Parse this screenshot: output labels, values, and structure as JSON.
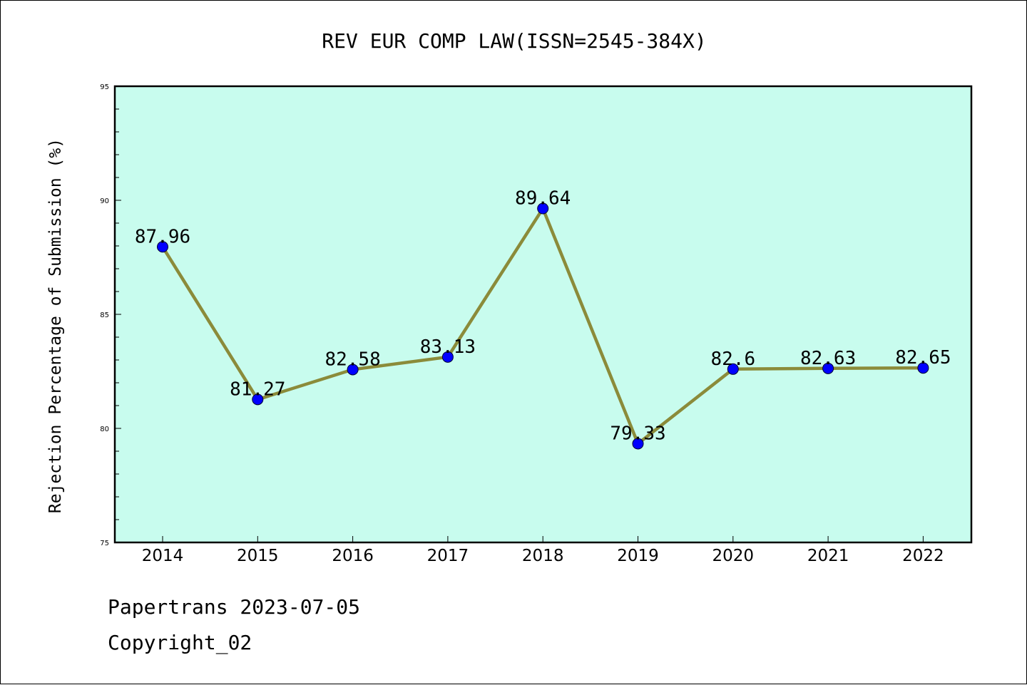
{
  "chart_data": {
    "type": "line",
    "title": "REV EUR COMP LAW(ISSN=2545-384X)",
    "ylabel": "Rejection Percentage of Submission (%)",
    "xlabel": "",
    "categories": [
      "2014",
      "2015",
      "2016",
      "2017",
      "2018",
      "2019",
      "2020",
      "2021",
      "2022"
    ],
    "values": [
      87.96,
      81.27,
      82.58,
      83.13,
      89.64,
      79.33,
      82.6,
      82.63,
      82.65
    ],
    "data_labels": [
      "87.96",
      "81.27",
      "82.58",
      "83.13",
      "89.64",
      "79.33",
      "82.6",
      "82.63",
      "82.65"
    ],
    "ylim": [
      75,
      95
    ],
    "yticks": [
      "75",
      "80",
      "85",
      "90",
      "95"
    ],
    "grid": false,
    "colors": {
      "plot_background": "#c8fcee",
      "line": "#8b8b3a",
      "marker": "#0000ff"
    }
  },
  "footer": {
    "line1": "Papertrans 2023-07-05",
    "line2": "Copyright_02"
  }
}
